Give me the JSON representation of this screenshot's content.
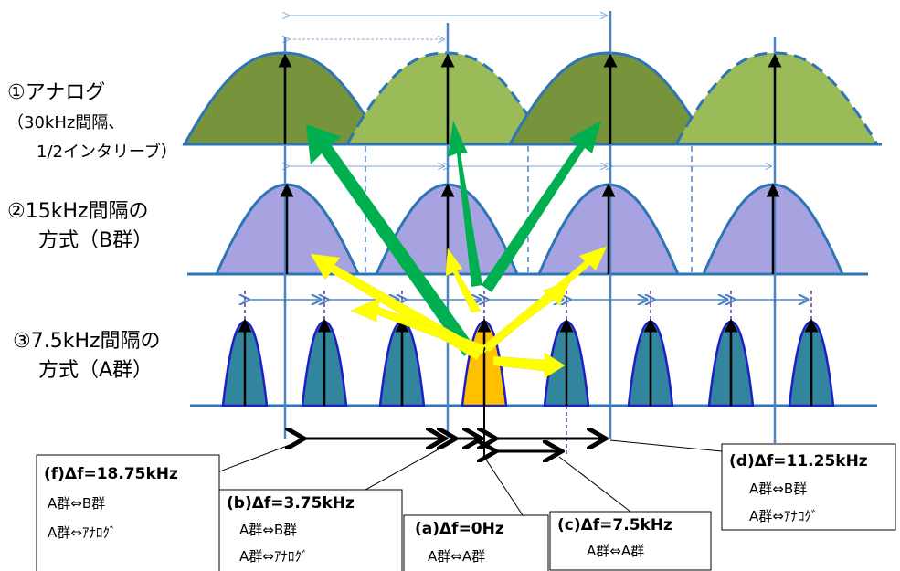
{
  "labels": {
    "analog_1": "①アナログ",
    "analog_2": "（30kHz間隔、",
    "analog_3": "1/2インタリーブ）",
    "b_1": "②15kHz間隔の",
    "b_2": "方式（B群）",
    "a_1": "③7.5kHz間隔の",
    "a_2": "方式（A群）"
  },
  "boxes": {
    "f": {
      "title": "(f)Δf=18.75kHz",
      "line1": "A群⇔B群",
      "line2": "A群⇔ｱﾅﾛｸﾞ"
    },
    "b": {
      "title": "(b)Δf=3.75kHz",
      "line1": "A群⇔B群",
      "line2": "A群⇔ｱﾅﾛｸﾞ"
    },
    "a": {
      "title": "(a)Δf=0Hz",
      "line1": "A群⇔A群"
    },
    "c": {
      "title": "(c)Δf=7.5kHz",
      "line1": "A群⇔A群"
    },
    "d": {
      "title": "(d)Δf=11.25kHz",
      "line1": "A群⇔B群",
      "line2": "A群⇔ｱﾅﾛｸﾞ"
    }
  },
  "colors": {
    "analog_dark": "#77933c",
    "analog_light": "#9bbb59",
    "b_fill": "#a7a3e0",
    "a_fill": "#31859c",
    "highlight": "#ffc000",
    "outline": "#2e75b6",
    "green_arrow": "#00b050",
    "yellow_arrow": "#ffff00"
  }
}
